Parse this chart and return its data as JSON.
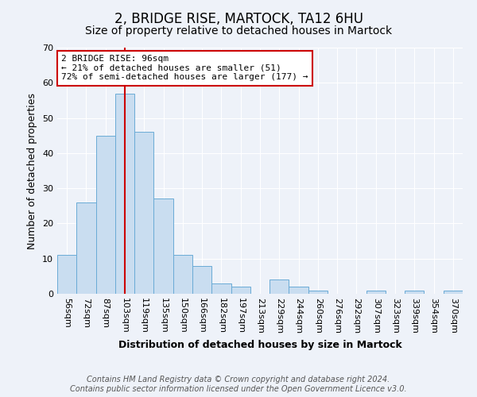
{
  "title": "2, BRIDGE RISE, MARTOCK, TA12 6HU",
  "subtitle": "Size of property relative to detached houses in Martock",
  "xlabel": "Distribution of detached houses by size in Martock",
  "ylabel": "Number of detached properties",
  "bar_color": "#c9ddf0",
  "bar_edge_color": "#6aabd6",
  "categories": [
    "56sqm",
    "72sqm",
    "87sqm",
    "103sqm",
    "119sqm",
    "135sqm",
    "150sqm",
    "166sqm",
    "182sqm",
    "197sqm",
    "213sqm",
    "229sqm",
    "244sqm",
    "260sqm",
    "276sqm",
    "292sqm",
    "307sqm",
    "323sqm",
    "339sqm",
    "354sqm",
    "370sqm"
  ],
  "values": [
    11,
    26,
    45,
    57,
    46,
    27,
    11,
    8,
    3,
    2,
    0,
    4,
    2,
    1,
    0,
    0,
    1,
    0,
    1,
    0,
    1
  ],
  "ylim": [
    0,
    70
  ],
  "yticks": [
    0,
    10,
    20,
    30,
    40,
    50,
    60,
    70
  ],
  "vline_index": 3,
  "vline_color": "#cc0000",
  "annotation_line1": "2 BRIDGE RISE: 96sqm",
  "annotation_line2": "← 21% of detached houses are smaller (51)",
  "annotation_line3": "72% of semi-detached houses are larger (177) →",
  "annotation_box_edge_color": "#cc0000",
  "footer_line1": "Contains HM Land Registry data © Crown copyright and database right 2024.",
  "footer_line2": "Contains public sector information licensed under the Open Government Licence v3.0.",
  "background_color": "#eef2f9",
  "plot_bg_color": "#eef2f9",
  "grid_color": "#ffffff",
  "title_fontsize": 12,
  "subtitle_fontsize": 10,
  "axis_label_fontsize": 9,
  "tick_fontsize": 8,
  "annotation_fontsize": 8,
  "footer_fontsize": 7
}
